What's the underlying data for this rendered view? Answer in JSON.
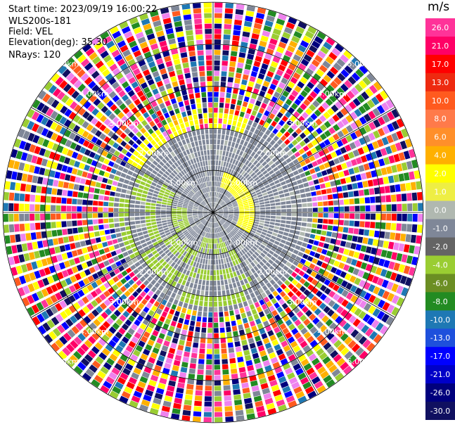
{
  "info": {
    "start_time": "Start time: 2023/09/19 16:00:22",
    "instrument": "WLS200s-181",
    "field": "Field: VEL",
    "elevation": "Elevation(deg): 35.30",
    "nrays": "NRays: 120"
  },
  "chart_data": {
    "type": "heatmap",
    "projection": "polar-ppi",
    "field": "VEL",
    "elevation_deg": 35.3,
    "n_rays": 120,
    "range_rings_km": [
      1.0,
      2.0,
      3.0,
      4.0,
      5.0
    ],
    "range_ring_labels": [
      "1.00km",
      "2.00km",
      "3.00km",
      "4.00km",
      "5.00km"
    ],
    "azimuth_lines_deg": [
      0,
      30,
      60,
      90,
      120,
      150,
      180,
      210,
      240,
      270,
      300,
      330
    ],
    "colorbar": {
      "unit": "m/s",
      "ticks": [
        26.0,
        21.0,
        17.0,
        13.0,
        10.0,
        8.0,
        6.0,
        4.0,
        2.0,
        1.0,
        0.0,
        -1.0,
        -2.0,
        -4.0,
        -6.0,
        -8.0,
        -10.0,
        -13.0,
        -17.0,
        -21.0,
        -26.0,
        -30.0
      ],
      "tick_labels": [
        "26.0",
        "21.0",
        "17.0",
        "13.0",
        "10.0",
        "8.0",
        "6.0",
        "4.0",
        "2.0",
        "1.0",
        "0.0",
        "-1.0",
        "-2.0",
        "-4.0",
        "-6.0",
        "-8.0",
        "-10.0",
        "-13.0",
        "-17.0",
        "-21.0",
        "-26.0",
        "-30.0"
      ],
      "colors": [
        "#ff3399",
        "#ff0066",
        "#ff0000",
        "#ee2a10",
        "#ff5a1e",
        "#ff7a4a",
        "#ff8f2a",
        "#ffb000",
        "#ffff00",
        "#eeee44",
        "#b0b8b0",
        "#7f8798",
        "#646464",
        "#9acd32",
        "#6b8e23",
        "#228b22",
        "#1e78b4",
        "#1e50dc",
        "#0000ff",
        "#0000c8",
        "#00007d",
        "#101060"
      ]
    },
    "noise_palette": [
      "#ff3399",
      "#ff0066",
      "#ff0000",
      "#ff5a1e",
      "#ffb000",
      "#ffff00",
      "#9acd32",
      "#228b22",
      "#1e78b4",
      "#0000ff",
      "#00007d",
      "#101060",
      "#ee82ee",
      "#7f8798"
    ],
    "valid_region_max_km": 2.4,
    "valid_pattern": {
      "inner_gray_km": 0.55,
      "yellow_band_km": [
        0.6,
        1.0
      ],
      "yellow_azimuth_deg": [
        15,
        120
      ],
      "outer_yellow_km": [
        2.0,
        2.5
      ],
      "outer_yellow_azimuth_deg": [
        300,
        20
      ],
      "green_km": [
        0.6,
        2.3
      ],
      "green_azimuth_deg": [
        150,
        300
      ]
    }
  }
}
